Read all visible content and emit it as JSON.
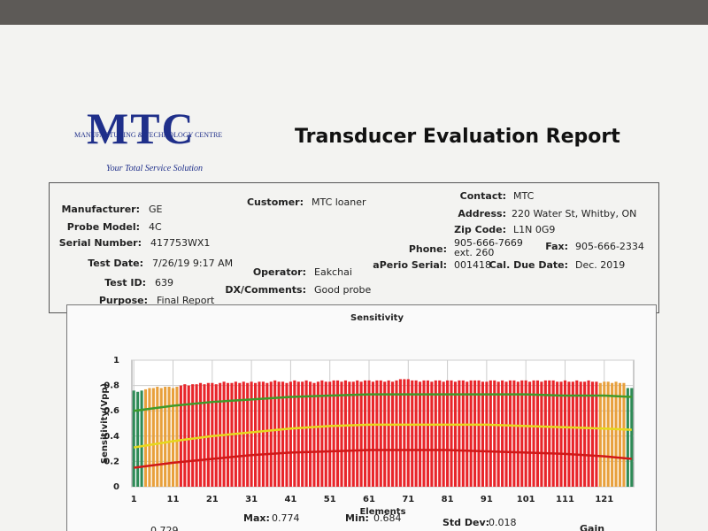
{
  "header": {
    "logo": "MTC",
    "logo_subtitle": "Manufacturing & Technology Centre",
    "tagline": "Your Total Service Solution",
    "title": "Transducer Evaluation Report"
  },
  "info": {
    "fields": [
      {
        "label": "Manufacturer:",
        "value": "GE"
      },
      {
        "label": "Probe Model:",
        "value": "4C"
      },
      {
        "label": "Serial Number:",
        "value": "417753WX1"
      },
      {
        "label": "Test Date:",
        "value": "7/26/19 9:17 AM"
      },
      {
        "label": "Test ID:",
        "value": "639"
      },
      {
        "label": "Purpose:",
        "value": "Final Report"
      },
      {
        "label": "Customer:",
        "value": "MTC loaner"
      },
      {
        "label": "Operator:",
        "value": "Eakchai"
      },
      {
        "label": "DX/Comments:",
        "value": "Good probe"
      },
      {
        "label": "Contact:",
        "value": "MTC"
      },
      {
        "label": "Address:",
        "value": "220 Water St, Whitby, ON"
      },
      {
        "label": "Zip Code:",
        "value": "L1N 0G9"
      },
      {
        "label": "Phone:",
        "value": "905-666-7669 ext. 260"
      },
      {
        "label": "Fax:",
        "value": "905-666-2334"
      },
      {
        "label": "aPerio Serial:",
        "value": "001418"
      },
      {
        "label": "Cal. Due Date:",
        "value": "Dec. 2019"
      }
    ]
  },
  "chart_data": {
    "type": "bar",
    "title": "Sensitivity",
    "x_label": "Elements",
    "y_label": "Sensitivity(Vpp)",
    "xlim": [
      0.5,
      128.5
    ],
    "xticks": [
      1,
      11,
      21,
      31,
      41,
      51,
      61,
      71,
      81,
      91,
      101,
      111,
      121
    ],
    "ylim": [
      0,
      1
    ],
    "yticks": [
      0,
      0.2,
      0.4,
      0.6,
      0.8,
      1
    ],
    "grid": true,
    "series": [
      {
        "x": [
          1,
          2,
          3,
          4,
          5,
          6,
          7,
          8,
          9,
          10,
          11,
          12,
          13,
          14,
          15,
          16,
          17,
          18,
          19,
          20,
          21,
          22,
          23,
          24,
          25,
          26,
          27,
          28,
          29,
          30,
          31,
          32,
          33,
          34,
          35,
          36,
          37,
          38,
          39,
          40,
          41,
          42,
          43,
          44,
          45,
          46,
          47,
          48,
          49,
          50,
          51,
          52,
          53,
          54,
          55,
          56,
          57,
          58,
          59,
          60,
          61,
          62,
          63,
          64,
          65,
          66,
          67,
          68,
          69,
          70,
          71,
          72,
          73,
          74,
          75,
          76,
          77,
          78,
          79,
          80,
          81,
          82,
          83,
          84,
          85,
          86,
          87,
          88,
          89,
          90,
          91,
          92,
          93,
          94,
          95,
          96,
          97,
          98,
          99,
          100,
          101,
          102,
          103,
          104,
          105,
          106,
          107,
          108,
          109,
          110,
          111,
          112,
          113,
          114,
          115,
          116,
          117,
          118,
          119,
          120,
          121,
          122,
          123,
          124,
          125,
          126,
          127,
          128
        ],
        "values": [
          0.76,
          0.75,
          0.76,
          0.77,
          0.78,
          0.78,
          0.79,
          0.78,
          0.79,
          0.79,
          0.78,
          0.79,
          0.8,
          0.81,
          0.8,
          0.81,
          0.81,
          0.82,
          0.81,
          0.82,
          0.82,
          0.81,
          0.82,
          0.83,
          0.82,
          0.82,
          0.83,
          0.82,
          0.83,
          0.82,
          0.83,
          0.82,
          0.83,
          0.83,
          0.82,
          0.83,
          0.84,
          0.83,
          0.83,
          0.82,
          0.83,
          0.84,
          0.83,
          0.83,
          0.84,
          0.83,
          0.82,
          0.83,
          0.84,
          0.83,
          0.83,
          0.84,
          0.84,
          0.83,
          0.84,
          0.83,
          0.83,
          0.84,
          0.83,
          0.84,
          0.84,
          0.83,
          0.84,
          0.84,
          0.83,
          0.84,
          0.83,
          0.84,
          0.85,
          0.85,
          0.85,
          0.84,
          0.84,
          0.83,
          0.84,
          0.84,
          0.83,
          0.84,
          0.84,
          0.83,
          0.84,
          0.84,
          0.83,
          0.84,
          0.84,
          0.83,
          0.84,
          0.84,
          0.84,
          0.83,
          0.83,
          0.84,
          0.84,
          0.83,
          0.84,
          0.83,
          0.84,
          0.84,
          0.83,
          0.84,
          0.84,
          0.83,
          0.84,
          0.84,
          0.83,
          0.84,
          0.84,
          0.84,
          0.83,
          0.83,
          0.84,
          0.83,
          0.83,
          0.84,
          0.83,
          0.83,
          0.84,
          0.83,
          0.83,
          0.82,
          0.83,
          0.83,
          0.82,
          0.83,
          0.82,
          0.82,
          0.78,
          0.78
        ]
      }
    ],
    "color_bands": [
      {
        "from": 1,
        "to": 3,
        "color": "#2e8b57"
      },
      {
        "from": 4,
        "to": 12,
        "color": "#e8a03c"
      },
      {
        "from": 13,
        "to": 119,
        "color": "#e8252a"
      },
      {
        "from": 120,
        "to": 126,
        "color": "#e8a03c"
      },
      {
        "from": 127,
        "to": 128,
        "color": "#2e8b57"
      }
    ],
    "lines": [
      {
        "color": "#3f9a2a",
        "x": [
          1,
          11,
          21,
          31,
          41,
          51,
          61,
          71,
          81,
          91,
          101,
          111,
          121,
          128
        ],
        "values": [
          0.6,
          0.64,
          0.67,
          0.69,
          0.71,
          0.72,
          0.73,
          0.73,
          0.73,
          0.73,
          0.73,
          0.72,
          0.72,
          0.71
        ]
      },
      {
        "color": "#e6d81e",
        "x": [
          1,
          11,
          21,
          31,
          41,
          51,
          61,
          71,
          81,
          91,
          101,
          111,
          121,
          128
        ],
        "values": [
          0.31,
          0.36,
          0.4,
          0.43,
          0.46,
          0.48,
          0.49,
          0.49,
          0.49,
          0.49,
          0.48,
          0.47,
          0.46,
          0.45
        ]
      },
      {
        "color": "#d01818",
        "x": [
          1,
          11,
          21,
          31,
          41,
          51,
          61,
          71,
          81,
          91,
          101,
          111,
          121,
          128
        ],
        "values": [
          0.15,
          0.19,
          0.22,
          0.25,
          0.27,
          0.28,
          0.29,
          0.29,
          0.29,
          0.28,
          0.27,
          0.26,
          0.24,
          0.22
        ]
      }
    ]
  },
  "stats": [
    {
      "value": "0.729"
    },
    {
      "label": "Max:",
      "value": "0.774"
    },
    {
      "label": "Min:",
      "value": "0.684"
    },
    {
      "label": "Std Dev:",
      "value": "0.018"
    },
    {
      "label": "Gain"
    }
  ]
}
